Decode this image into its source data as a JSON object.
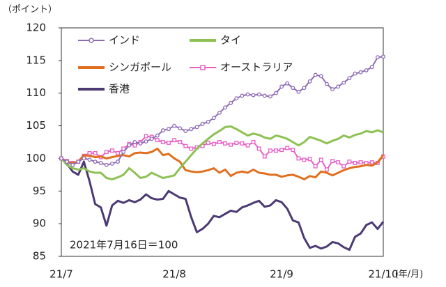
{
  "chart_data": {
    "type": "line",
    "y_label": "（ポイント）",
    "x_unit": "(年/月)",
    "annotation": "2021年7月16日＝100",
    "categories": [
      "21/7",
      null,
      null,
      null,
      null,
      null,
      null,
      null,
      null,
      null,
      null,
      null,
      null,
      null,
      null,
      null,
      null,
      null,
      null,
      null,
      "21/8",
      null,
      null,
      null,
      null,
      null,
      null,
      null,
      null,
      null,
      null,
      null,
      null,
      null,
      null,
      null,
      null,
      null,
      null,
      "21/9",
      null,
      null,
      null,
      null,
      null,
      null,
      null,
      null,
      null,
      null,
      null,
      null,
      null,
      null,
      null,
      null,
      null,
      "21/10"
    ],
    "ylim": [
      85,
      120
    ],
    "yticks": [
      85,
      90,
      95,
      100,
      105,
      110,
      115,
      120
    ],
    "grid": false,
    "series": [
      {
        "name": "インド",
        "color": "#8e6bb5",
        "marker": "circle",
        "values": [
          100,
          99.5,
          99,
          99.5,
          100,
          99.8,
          99.5,
          99.3,
          99,
          99.2,
          99.5,
          101,
          102,
          102.5,
          102.3,
          102.6,
          103,
          103.5,
          104.3,
          104.5,
          105,
          104.6,
          104.2,
          104.5,
          104.8,
          105.3,
          105.6,
          106.2,
          107,
          107.8,
          108.5,
          109.2,
          109.6,
          109.8,
          109.7,
          109.8,
          109.6,
          109.5,
          110,
          111,
          111.5,
          110.8,
          110.2,
          110.8,
          111.8,
          112.8,
          112.6,
          111.4,
          110.6,
          111,
          111.6,
          112.3,
          113,
          113.2,
          113.5,
          114,
          115.5,
          115.6
        ]
      },
      {
        "name": "タイ",
        "color": "#8dc153",
        "values": [
          100,
          99,
          98.5,
          98.3,
          98.5,
          98,
          97.8,
          97.8,
          97,
          96.8,
          97.1,
          97.5,
          98.5,
          97.8,
          97,
          97.2,
          97.8,
          97.4,
          97,
          97.2,
          97.4,
          98.5,
          99.5,
          100.5,
          101.5,
          102.3,
          103,
          103.7,
          104.2,
          104.8,
          104.9,
          104.5,
          104,
          103.5,
          103.8,
          103.6,
          103.2,
          103,
          103.5,
          103.3,
          103,
          102.5,
          102,
          102.5,
          103.3,
          103,
          102.7,
          102.3,
          102.7,
          103,
          103.5,
          103.2,
          103.6,
          103.8,
          104.2,
          104,
          104.3,
          104
        ]
      },
      {
        "name": "シンガポール",
        "color": "#e07020",
        "values": [
          100,
          99.5,
          99.3,
          99.5,
          100.5,
          100.4,
          100.2,
          100.3,
          100,
          100.2,
          100.4,
          100.5,
          100.3,
          100.8,
          100.9,
          100.8,
          101,
          101.5,
          100.5,
          100.7,
          100,
          99.5,
          98.2,
          98,
          97.9,
          98,
          98.2,
          98.5,
          97.8,
          98.3,
          97.3,
          97.8,
          98,
          97.8,
          98.3,
          97.8,
          97.7,
          97.5,
          97.5,
          97.2,
          97.4,
          97.5,
          97.2,
          96.8,
          97.3,
          97.1,
          98,
          97.8,
          97.4,
          97.8,
          98.2,
          98.5,
          98.7,
          98.8,
          99,
          98.9,
          99.4,
          100.5
        ]
      },
      {
        "name": "オーストラリア",
        "color": "#e85fc8",
        "marker": "square",
        "values": [
          100,
          99.6,
          99.3,
          99.5,
          100.4,
          100.8,
          100.8,
          100.2,
          101,
          101.2,
          100.8,
          101.5,
          102.2,
          102,
          102.5,
          103.4,
          103.3,
          102.8,
          102.5,
          102.4,
          102.8,
          102.5,
          101.9,
          101.5,
          101.7,
          101.9,
          102.4,
          102.2,
          102.5,
          102.3,
          102.1,
          102.4,
          102.3,
          102,
          102.5,
          101.5,
          100.3,
          101.2,
          101.2,
          101.3,
          101.6,
          101.3,
          100,
          99.8,
          99.9,
          98.8,
          99.8,
          98.3,
          99.6,
          99.4,
          98.8,
          99.5,
          99.3,
          99.4,
          99.3,
          99.4,
          99.3,
          100.3
        ]
      },
      {
        "name": "香港",
        "color": "#4b3a73",
        "values": [
          100,
          99.2,
          98,
          97.5,
          99.5,
          96.5,
          93,
          92.5,
          89.7,
          92.8,
          93.5,
          93.2,
          93.6,
          93.3,
          93.7,
          94.5,
          93.9,
          93.7,
          93.8,
          95,
          94.5,
          94,
          93.8,
          91,
          88.7,
          89.2,
          90,
          91.2,
          91,
          91.5,
          92,
          91.8,
          92.5,
          92.8,
          93.2,
          93.5,
          92.6,
          92.8,
          93.6,
          93.3,
          92.3,
          90.5,
          90.2,
          87.8,
          86.3,
          86.6,
          86.2,
          86.5,
          87.2,
          87,
          86.4,
          86,
          88,
          88.5,
          89.8,
          90.2,
          89.2,
          90.3
        ]
      }
    ]
  }
}
